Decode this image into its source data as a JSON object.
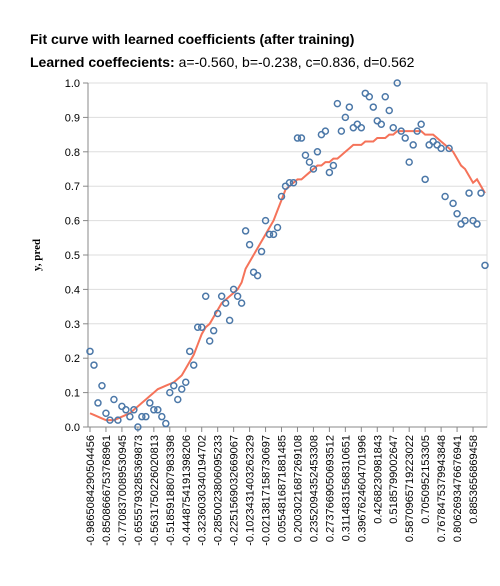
{
  "chart_data": {
    "type": "scatter",
    "title": "Fit curve with learned coefficients (after training)",
    "subtitle_label": "Learned coeffecients:",
    "subtitle_value": "a=-0.560, b=-0.238, c=0.836, d=0.562",
    "y_label": "y, pred",
    "categories": [
      "-0.9865084290504456",
      null,
      null,
      null,
      "-0.8508666753768961",
      null,
      null,
      null,
      "-0.7708370089530945",
      null,
      null,
      null,
      "-0.6555793285369873",
      null,
      null,
      null,
      "-0.5631750226020813",
      null,
      null,
      null,
      "-0.5185918807983398",
      null,
      null,
      null,
      "-0.4448754191398206",
      null,
      null,
      null,
      "-0.3236030340194702",
      null,
      null,
      null,
      "-0.2850023806095233",
      null,
      null,
      null,
      "-0.2251569032669067",
      null,
      null,
      null,
      "-0.1023431403262329",
      null,
      null,
      null,
      "-0.0213817158730697",
      null,
      null,
      null,
      "0.0554816871881485",
      null,
      null,
      null,
      "0.2003021687269108",
      null,
      null,
      null,
      "0.2352094352453308",
      null,
      null,
      null,
      "0.2737669050693512",
      null,
      null,
      null,
      "0.3114831568310651",
      null,
      null,
      null,
      "0.3967624604701996",
      null,
      null,
      null,
      "0.4268230981843",
      null,
      null,
      null,
      "0.5185799002647",
      null,
      null,
      null,
      "0.5870965719223022",
      null,
      null,
      null,
      "0.7050952153305",
      null,
      null,
      null,
      "0.7678475379943848",
      null,
      null,
      null,
      "0.8062693476676941",
      null,
      null,
      null,
      "0.8853656869458",
      null,
      null,
      null
    ],
    "series": [
      {
        "mark": "point",
        "color": "#4c78a8",
        "values": [
          0.22,
          0.18,
          0.07,
          0.12,
          0.04,
          0.02,
          0.08,
          0.02,
          0.06,
          0.05,
          0.03,
          0.05,
          0.0,
          0.03,
          0.03,
          0.07,
          0.05,
          0.05,
          0.03,
          0.01,
          0.1,
          0.12,
          0.08,
          0.11,
          0.13,
          0.22,
          0.18,
          0.29,
          0.29,
          0.38,
          0.25,
          0.28,
          0.33,
          0.38,
          0.36,
          0.31,
          0.4,
          0.38,
          0.36,
          0.57,
          0.53,
          0.45,
          0.44,
          0.51,
          0.6,
          0.56,
          0.56,
          0.58,
          0.67,
          0.7,
          0.71,
          0.71,
          0.84,
          0.84,
          0.79,
          0.77,
          0.75,
          0.8,
          0.85,
          0.86,
          0.74,
          0.76,
          0.94,
          0.86,
          0.9,
          0.93,
          0.87,
          0.88,
          0.87,
          0.97,
          0.96,
          0.93,
          0.89,
          0.88,
          0.96,
          0.92,
          0.87,
          1.0,
          0.86,
          0.84,
          0.77,
          0.82,
          0.86,
          0.88,
          0.72,
          0.82,
          0.83,
          0.82,
          0.81,
          0.67,
          0.81,
          0.65,
          0.62,
          0.59,
          0.6,
          0.68,
          0.6,
          0.59,
          0.68,
          0.47
        ]
      },
      {
        "mark": "line",
        "color": "#f5735a",
        "values": [
          0.04,
          0.035,
          0.03,
          0.025,
          0.02,
          0.02,
          0.02,
          0.025,
          0.03,
          0.035,
          0.04,
          0.05,
          0.06,
          0.07,
          0.08,
          0.09,
          0.1,
          0.11,
          0.115,
          0.12,
          0.125,
          0.13,
          0.14,
          0.15,
          0.17,
          0.19,
          0.21,
          0.24,
          0.27,
          0.29,
          0.3,
          0.32,
          0.34,
          0.36,
          0.37,
          0.38,
          0.39,
          0.4,
          0.42,
          0.46,
          0.48,
          0.5,
          0.52,
          0.54,
          0.56,
          0.58,
          0.6,
          0.63,
          0.66,
          0.69,
          0.7,
          0.71,
          0.72,
          0.72,
          0.73,
          0.74,
          0.75,
          0.76,
          0.76,
          0.77,
          0.77,
          0.78,
          0.78,
          0.79,
          0.8,
          0.81,
          0.82,
          0.82,
          0.82,
          0.83,
          0.83,
          0.83,
          0.84,
          0.84,
          0.84,
          0.85,
          0.85,
          0.86,
          0.86,
          0.86,
          0.86,
          0.86,
          0.86,
          0.86,
          0.85,
          0.85,
          0.85,
          0.84,
          0.83,
          0.82,
          0.81,
          0.8,
          0.78,
          0.76,
          0.75,
          0.73,
          0.71,
          0.72,
          0.7,
          0.68
        ]
      }
    ],
    "ylim": [
      0,
      1
    ],
    "yticks": [
      {
        "value": 0,
        "label": "0.0"
      },
      0.1,
      0.2,
      0.3,
      0.4,
      0.5,
      0.6,
      0.7,
      0.8,
      0.9,
      {
        "value": 1,
        "label": "1.0"
      }
    ],
    "grid": true
  }
}
